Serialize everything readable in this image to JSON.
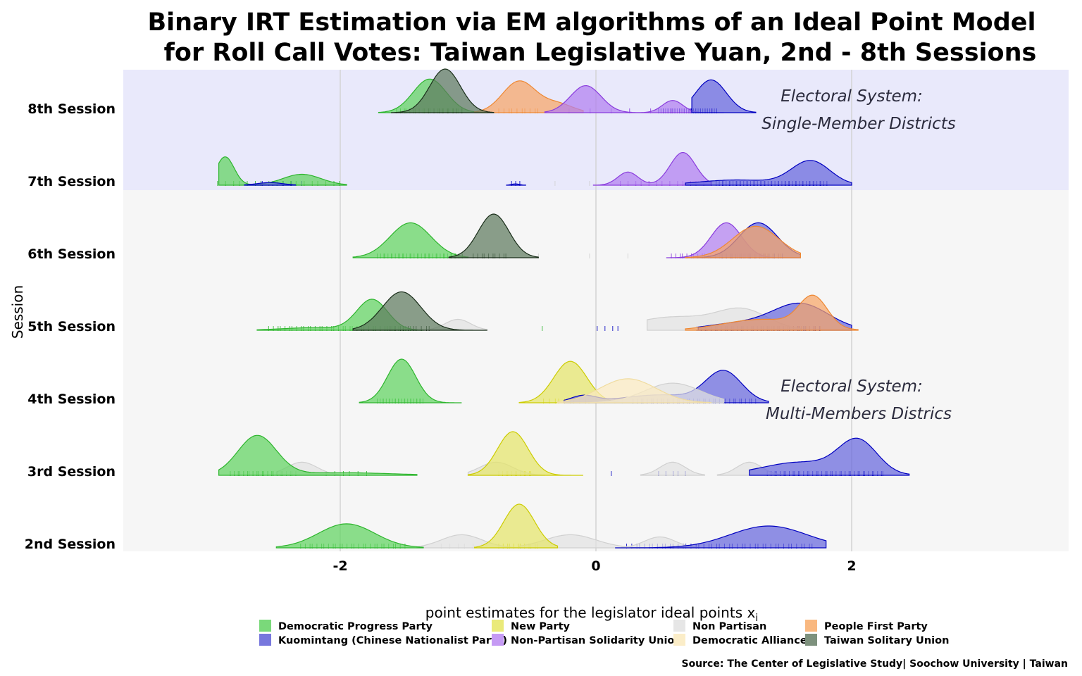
{
  "chart_data": {
    "type": "ridgeline",
    "title_lines": [
      "Binary IRT Estimation via EM algorithms  of an Ideal Point Model",
      "for Roll Call Votes: Taiwan Legislative Yuan, 2nd - 8th Sessions"
    ],
    "ylabel": "Session",
    "xlabel": "point estimates for the legislator ideal points x",
    "xlabel_subscript": "i",
    "xlim": [
      -3.7,
      3.7
    ],
    "x_ticks": [
      -2,
      0,
      2
    ],
    "x_tick_labels": [
      "-2",
      "0",
      "2"
    ],
    "grid": true,
    "sessions": [
      "2nd Session",
      "3rd Session",
      "4th Session",
      "5th Session",
      "6th Session",
      "7th Session",
      "8th Session"
    ],
    "bands": [
      {
        "from_session": 5,
        "to_session": 6,
        "color": "#e9e9fb"
      },
      {
        "from_session": 0,
        "to_session": 4,
        "color": "#f6f6f6"
      }
    ],
    "annotations": [
      {
        "lines": [
          "Electoral System:",
          "Single-Member Districts"
        ],
        "session": 6,
        "x": 2.0
      },
      {
        "lines": [
          "Electoral System:",
          "Multi-Members Districs"
        ],
        "session": 2,
        "x": 2.0
      }
    ],
    "parties": [
      {
        "name": "Democratic Progress Party",
        "color": "#5fd35f",
        "stroke": "#2db52d"
      },
      {
        "name": "Kuomintang (Chinese Nationalist Party)",
        "color": "#6666dd",
        "stroke": "#0000c0"
      },
      {
        "name": "New Party",
        "color": "#e5e56a",
        "stroke": "#cccc00"
      },
      {
        "name": "Non-Partisan Solidarity Union",
        "color": "#b17ff0",
        "stroke": "#8a3cdd"
      },
      {
        "name": "Non Partisan",
        "color": "#e2e2e2",
        "stroke": "#d0d0d0"
      },
      {
        "name": "Democratic Alliance",
        "color": "#fbeac0",
        "stroke": "#f0dca0"
      },
      {
        "name": "People First Party",
        "color": "#f7a566",
        "stroke": "#ee8833"
      },
      {
        "name": "Taiwan Solitary Union",
        "color": "#5e7a5e",
        "stroke": "#1a2e1a"
      }
    ],
    "series": [
      {
        "session": 0,
        "party": 4,
        "range": [
          -1.4,
          -0.6
        ],
        "comps": [
          [
            -1.05,
            0.16,
            0.3
          ]
        ]
      },
      {
        "session": 0,
        "party": 4,
        "range": [
          -0.6,
          0.4
        ],
        "comps": [
          [
            -0.2,
            0.2,
            0.3
          ]
        ]
      },
      {
        "session": 0,
        "party": 4,
        "range": [
          0.2,
          0.8
        ],
        "comps": [
          [
            0.5,
            0.12,
            0.25
          ]
        ]
      },
      {
        "session": 0,
        "party": 0,
        "range": [
          -2.5,
          -1.35
        ],
        "comps": [
          [
            -1.95,
            0.22,
            0.55
          ]
        ]
      },
      {
        "session": 0,
        "party": 2,
        "range": [
          -0.95,
          -0.3
        ],
        "comps": [
          [
            -0.6,
            0.12,
            1.0
          ]
        ]
      },
      {
        "session": 0,
        "party": 1,
        "range": [
          0.15,
          1.8
        ],
        "comps": [
          [
            1.35,
            0.3,
            0.5
          ]
        ]
      },
      {
        "session": 1,
        "party": 4,
        "range": [
          -2.5,
          -2.0
        ],
        "comps": [
          [
            -2.3,
            0.12,
            0.3
          ]
        ]
      },
      {
        "session": 1,
        "party": 4,
        "range": [
          -1.0,
          -0.4
        ],
        "comps": [
          [
            -0.78,
            0.13,
            0.3
          ]
        ]
      },
      {
        "session": 1,
        "party": 4,
        "range": [
          0.35,
          0.85
        ],
        "comps": [
          [
            0.6,
            0.1,
            0.3
          ]
        ]
      },
      {
        "session": 1,
        "party": 4,
        "range": [
          0.95,
          1.45
        ],
        "comps": [
          [
            1.2,
            0.1,
            0.3
          ]
        ]
      },
      {
        "session": 1,
        "party": 0,
        "range": [
          -2.95,
          -1.4
        ],
        "comps": [
          [
            -2.65,
            0.15,
            0.9
          ],
          [
            -2.0,
            0.4,
            0.06
          ]
        ]
      },
      {
        "session": 1,
        "party": 2,
        "range": [
          -1.0,
          -0.1
        ],
        "comps": [
          [
            -0.65,
            0.12,
            1.0
          ]
        ]
      },
      {
        "session": 1,
        "party": 1,
        "range": [
          1.2,
          2.45
        ],
        "comps": [
          [
            2.05,
            0.15,
            0.75
          ],
          [
            1.6,
            0.3,
            0.3
          ]
        ]
      },
      {
        "session": 2,
        "party": 0,
        "range": [
          -1.85,
          -1.05
        ],
        "comps": [
          [
            -1.52,
            0.11,
            1.0
          ]
        ]
      },
      {
        "session": 2,
        "party": 2,
        "range": [
          -0.6,
          0.4
        ],
        "comps": [
          [
            -0.2,
            0.13,
            0.95
          ]
        ]
      },
      {
        "session": 2,
        "party": 1,
        "range": [
          -0.25,
          1.35
        ],
        "comps": [
          [
            1.0,
            0.14,
            0.7
          ],
          [
            -0.1,
            0.1,
            0.15
          ],
          [
            0.5,
            0.3,
            0.18
          ]
        ]
      },
      {
        "session": 2,
        "party": 4,
        "range": [
          -0.3,
          1.0
        ],
        "comps": [
          [
            0.6,
            0.22,
            0.45
          ]
        ]
      },
      {
        "session": 2,
        "party": 5,
        "range": [
          -0.3,
          0.9
        ],
        "comps": [
          [
            0.25,
            0.22,
            0.55
          ]
        ]
      },
      {
        "session": 3,
        "party": 0,
        "range": [
          -2.65,
          -1.35
        ],
        "comps": [
          [
            -1.75,
            0.12,
            0.7
          ],
          [
            -2.2,
            0.25,
            0.06
          ]
        ]
      },
      {
        "session": 3,
        "party": 4,
        "range": [
          -1.3,
          -0.85
        ],
        "comps": [
          [
            -1.08,
            0.1,
            0.25
          ]
        ]
      },
      {
        "session": 3,
        "party": 7,
        "range": [
          -1.9,
          -0.85
        ],
        "comps": [
          [
            -1.52,
            0.15,
            0.88
          ]
        ]
      },
      {
        "session": 3,
        "party": 4,
        "range": [
          0.4,
          1.6
        ],
        "comps": [
          [
            1.15,
            0.2,
            0.45
          ],
          [
            0.6,
            0.3,
            0.3
          ]
        ]
      },
      {
        "session": 3,
        "party": 1,
        "range": [
          0.8,
          2.0
        ],
        "comps": [
          [
            1.6,
            0.22,
            0.6
          ],
          [
            1.1,
            0.25,
            0.15
          ]
        ]
      },
      {
        "session": 3,
        "party": 6,
        "range": [
          0.7,
          2.05
        ],
        "comps": [
          [
            1.7,
            0.11,
            0.7
          ],
          [
            1.3,
            0.3,
            0.25
          ]
        ]
      },
      {
        "session": 4,
        "party": 0,
        "range": [
          -1.9,
          -1.0
        ],
        "comps": [
          [
            -1.45,
            0.16,
            0.8
          ]
        ]
      },
      {
        "session": 4,
        "party": 7,
        "range": [
          -1.15,
          -0.45
        ],
        "comps": [
          [
            -0.8,
            0.12,
            1.0
          ]
        ]
      },
      {
        "session": 4,
        "party": 3,
        "range": [
          0.55,
          1.6
        ],
        "comps": [
          [
            1.02,
            0.12,
            0.8
          ]
        ]
      },
      {
        "session": 4,
        "party": 1,
        "range": [
          0.7,
          1.6
        ],
        "comps": [
          [
            1.27,
            0.15,
            0.8
          ]
        ]
      },
      {
        "session": 4,
        "party": 6,
        "range": [
          0.7,
          1.6
        ],
        "comps": [
          [
            1.25,
            0.18,
            0.72
          ]
        ]
      },
      {
        "session": 5,
        "party": 0,
        "range": [
          -2.95,
          -1.95
        ],
        "comps": [
          [
            -2.9,
            0.07,
            0.65
          ],
          [
            -2.3,
            0.15,
            0.25
          ]
        ]
      },
      {
        "session": 5,
        "party": 1,
        "range": [
          -2.75,
          -2.35
        ],
        "comps": [
          [
            -2.55,
            0.1,
            0.06
          ]
        ]
      },
      {
        "session": 5,
        "party": 1,
        "range": [
          -0.7,
          -0.55
        ],
        "comps": [
          [
            -0.63,
            0.03,
            0.03
          ]
        ]
      },
      {
        "session": 5,
        "party": 3,
        "range": [
          -0.02,
          0.9
        ],
        "comps": [
          [
            0.68,
            0.1,
            0.75
          ],
          [
            0.25,
            0.08,
            0.3
          ]
        ]
      },
      {
        "session": 5,
        "party": 1,
        "range": [
          0.7,
          2.0
        ],
        "comps": [
          [
            1.68,
            0.15,
            0.55
          ],
          [
            1.1,
            0.3,
            0.12
          ]
        ]
      },
      {
        "session": 6,
        "party": 0,
        "range": [
          -1.7,
          -0.85
        ],
        "comps": [
          [
            -1.3,
            0.13,
            0.77
          ]
        ]
      },
      {
        "session": 6,
        "party": 6,
        "range": [
          -0.95,
          -0.1
        ],
        "comps": [
          [
            -0.6,
            0.13,
            0.72
          ],
          [
            -0.3,
            0.12,
            0.2
          ]
        ]
      },
      {
        "session": 6,
        "party": 3,
        "range": [
          -0.4,
          1.0
        ],
        "comps": [
          [
            -0.08,
            0.12,
            0.62
          ],
          [
            0.6,
            0.08,
            0.28
          ]
        ]
      },
      {
        "session": 6,
        "party": 1,
        "range": [
          0.75,
          1.25
        ],
        "comps": [
          [
            0.9,
            0.12,
            0.75
          ]
        ]
      },
      {
        "session": 6,
        "party": 7,
        "range": [
          -1.6,
          -0.8
        ],
        "comps": [
          [
            -1.18,
            0.12,
            1.0
          ]
        ]
      }
    ],
    "rugs": [
      {
        "session": 0,
        "party": 0,
        "from": -2.3,
        "to": -1.5,
        "count": 28
      },
      {
        "session": 0,
        "party": 2,
        "from": -0.75,
        "to": -0.45,
        "count": 12
      },
      {
        "session": 0,
        "party": 1,
        "from": 0.25,
        "to": 1.7,
        "count": 45
      },
      {
        "session": 0,
        "party": 4,
        "from": -1.2,
        "to": -0.9,
        "count": 6
      },
      {
        "session": 1,
        "party": 0,
        "from": -2.85,
        "to": -2.35,
        "count": 22
      },
      {
        "session": 1,
        "party": 0,
        "from": -2.1,
        "to": -1.8,
        "count": 6
      },
      {
        "session": 1,
        "party": 2,
        "from": -0.75,
        "to": -0.5,
        "count": 12
      },
      {
        "session": 1,
        "party": 1,
        "from": 1.35,
        "to": 2.25,
        "count": 40
      },
      {
        "session": 1,
        "party": 1,
        "from": 0.5,
        "to": 0.7,
        "count": 5
      },
      {
        "session": 1,
        "party": 1,
        "from": 0.12,
        "to": 0.12,
        "count": 1
      },
      {
        "session": 2,
        "party": 0,
        "from": -1.7,
        "to": -1.35,
        "count": 24
      },
      {
        "session": 2,
        "party": 2,
        "from": -0.4,
        "to": -0.05,
        "count": 10
      },
      {
        "session": 2,
        "party": 1,
        "from": 0.3,
        "to": 1.25,
        "count": 38
      },
      {
        "session": 2,
        "party": 4,
        "from": 0.0,
        "to": 0.5,
        "count": 8
      },
      {
        "session": 3,
        "party": 0,
        "from": -2.55,
        "to": -1.45,
        "count": 38
      },
      {
        "session": 3,
        "party": 7,
        "from": -1.6,
        "to": -1.3,
        "count": 10
      },
      {
        "session": 3,
        "party": 0,
        "from": -0.42,
        "to": -0.42,
        "count": 1
      },
      {
        "session": 3,
        "party": 1,
        "from": 0.02,
        "to": 0.18,
        "count": 4
      },
      {
        "session": 3,
        "party": 1,
        "from": 0.8,
        "to": 1.75,
        "count": 38
      },
      {
        "session": 3,
        "party": 6,
        "from": 1.3,
        "to": 1.75,
        "count": 14
      },
      {
        "session": 4,
        "party": 0,
        "from": -1.7,
        "to": -1.05,
        "count": 36
      },
      {
        "session": 4,
        "party": 7,
        "from": -0.95,
        "to": -0.7,
        "count": 10
      },
      {
        "session": 4,
        "party": 4,
        "from": -0.45,
        "to": -0.45,
        "count": 1
      },
      {
        "session": 4,
        "party": 4,
        "from": -0.05,
        "to": -0.05,
        "count": 1
      },
      {
        "session": 4,
        "party": 4,
        "from": 0.25,
        "to": 0.25,
        "count": 1
      },
      {
        "session": 4,
        "party": 3,
        "from": 0.6,
        "to": 1.3,
        "count": 26
      },
      {
        "session": 4,
        "party": 1,
        "from": 1.0,
        "to": 1.45,
        "count": 20
      },
      {
        "session": 4,
        "party": 6,
        "from": 1.15,
        "to": 1.45,
        "count": 10
      },
      {
        "session": 5,
        "party": 0,
        "from": -2.95,
        "to": -2.0,
        "count": 18
      },
      {
        "session": 5,
        "party": 1,
        "from": -2.6,
        "to": -2.3,
        "count": 5
      },
      {
        "session": 5,
        "party": 1,
        "from": -0.65,
        "to": -0.6,
        "count": 3
      },
      {
        "session": 5,
        "party": 4,
        "from": -0.32,
        "to": -0.32,
        "count": 1
      },
      {
        "session": 5,
        "party": 4,
        "from": -0.05,
        "to": -0.05,
        "count": 1
      },
      {
        "session": 5,
        "party": 3,
        "from": 0.2,
        "to": 0.9,
        "count": 14
      },
      {
        "session": 5,
        "party": 1,
        "from": 0.95,
        "to": 1.8,
        "count": 50
      },
      {
        "session": 6,
        "party": 0,
        "from": -1.55,
        "to": -1.05,
        "count": 22
      },
      {
        "session": 6,
        "party": 7,
        "from": -1.3,
        "to": -1.05,
        "count": 8
      },
      {
        "session": 6,
        "party": 6,
        "from": -0.75,
        "to": -0.45,
        "count": 10
      },
      {
        "session": 6,
        "party": 3,
        "from": -0.2,
        "to": 0.9,
        "count": 8
      },
      {
        "session": 6,
        "party": 1,
        "from": 0.5,
        "to": 0.95,
        "count": 40
      }
    ]
  },
  "legend_items": [
    {
      "label": "Democratic Progress Party",
      "color": "#7ad97a"
    },
    {
      "label": "New Party",
      "color": "#eaea7a"
    },
    {
      "label": "Non Partisan",
      "color": "#e6e6e6"
    },
    {
      "label": "People First Party",
      "color": "#f9b880"
    },
    {
      "label": "Kuomintang (Chinese Nationalist Party)",
      "color": "#7777dd"
    },
    {
      "label": "Non-Partisan Solidarity Union",
      "color": "#c59af4"
    },
    {
      "label": "Democratic Alliance",
      "color": "#fbedc8"
    },
    {
      "label": "Taiwan Solitary Union",
      "color": "#7d917d"
    }
  ],
  "source": "Source: The Center of Legislative Study| Soochow University | Taiwan"
}
